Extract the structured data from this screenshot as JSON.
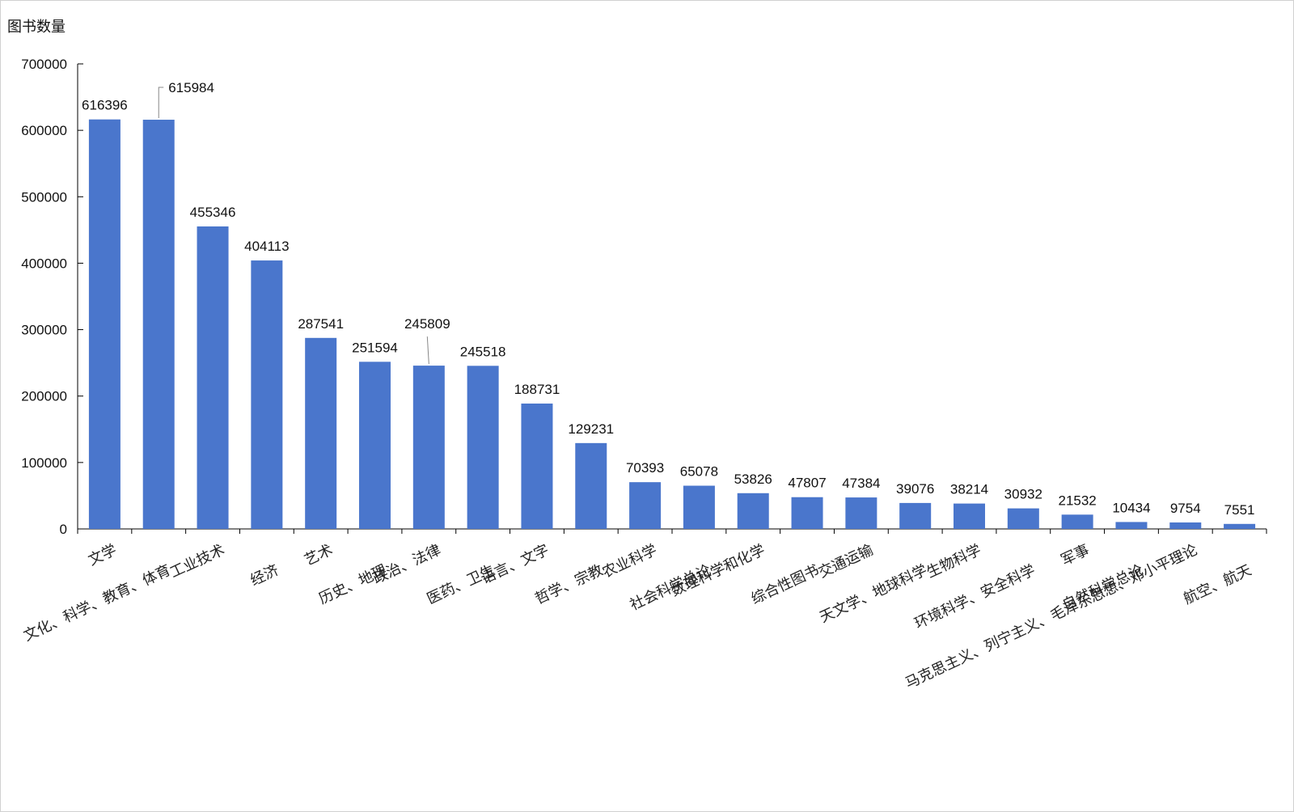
{
  "chart_data": {
    "type": "bar",
    "ylabel": "图书数量",
    "xlabel": "",
    "ylim": [
      0,
      700000
    ],
    "yticks": [
      0,
      100000,
      200000,
      300000,
      400000,
      500000,
      600000,
      700000
    ],
    "ytick_labels": [
      "0",
      "100000",
      "200000",
      "300000",
      "400000",
      "500000",
      "600000",
      "700000"
    ],
    "grid": false,
    "legend": "none",
    "bar_color": "#4A76CC",
    "categories": [
      "文学",
      "文化、科学、教育、体育",
      "工业技术",
      "经济",
      "艺术",
      "历史、地理",
      "政治、法律",
      "医药、卫生",
      "语言、文字",
      "哲学、宗教",
      "农业科学",
      "社会科学总论",
      "数理科学和化学",
      "综合性图书",
      "交通运输",
      "天文学、地球科学",
      "生物科学",
      "环境科学、安全科学",
      "军事",
      "自然科学总论",
      "马克思主义、列宁主义、毛泽东思想、邓小平理论",
      "航空、航天"
    ],
    "values": [
      616396,
      615984,
      455346,
      404113,
      287541,
      251594,
      245809,
      245518,
      188731,
      129231,
      70393,
      65078,
      53826,
      47807,
      47384,
      39076,
      38214,
      30932,
      21532,
      10434,
      9754,
      7551
    ]
  }
}
